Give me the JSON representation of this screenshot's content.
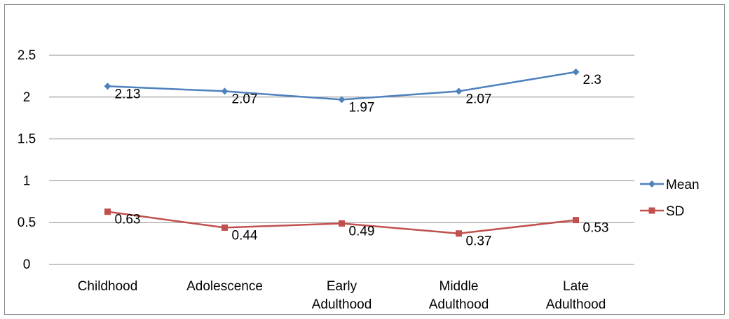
{
  "chart_data": {
    "type": "line",
    "categories": [
      "Childhood",
      "Adolescence",
      "Early Adulthood",
      "Middle Adulthood",
      "Late Adulthood"
    ],
    "category_lines": [
      [
        "Childhood"
      ],
      [
        "Adolescence"
      ],
      [
        "Early",
        "Adulthood"
      ],
      [
        "Middle",
        "Adulthood"
      ],
      [
        "Late",
        "Adulthood"
      ]
    ],
    "series": [
      {
        "name": "Mean",
        "values": [
          2.13,
          2.07,
          1.97,
          2.07,
          2.3
        ],
        "labels": [
          "2.13",
          "2.07",
          "1.97",
          "2.07",
          "2.3"
        ],
        "color": "#4f81bd",
        "marker": "diamond"
      },
      {
        "name": "SD",
        "values": [
          0.63,
          0.44,
          0.49,
          0.37,
          0.53
        ],
        "labels": [
          "0.63",
          "0.44",
          "0.49",
          "0.37",
          "0.53"
        ],
        "color": "#c0504d",
        "marker": "square"
      }
    ],
    "yticks": [
      "0",
      "0.5",
      "1",
      "1.5",
      "2",
      "2.5"
    ],
    "ylim": [
      0,
      2.5
    ],
    "grid": true,
    "legend": "right",
    "title": "",
    "xlabel": "",
    "ylabel": ""
  }
}
